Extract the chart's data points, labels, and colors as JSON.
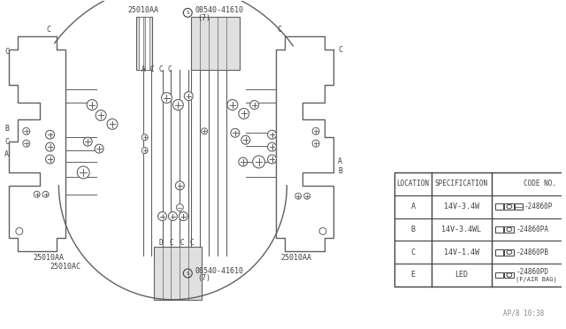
{
  "bg_color": "#ffffff",
  "table": {
    "headers": [
      "LOCATION",
      "SPECIFICATION",
      "CODE NO."
    ],
    "rows": [
      [
        "A",
        "14V-3.4W",
        "24860P"
      ],
      [
        "B",
        "14V-3.4WL",
        "24860PA"
      ],
      [
        "C",
        "14V-1.4W",
        "24860PB"
      ],
      [
        "E",
        "LED",
        "24860PD\n(F/AIR BAG)"
      ]
    ]
  },
  "top_label": "25010AA",
  "top_s_label": "08540-41610",
  "top_s_sub": "(7)",
  "bot_s_label": "08540-41610",
  "bot_s_sub": "(7)",
  "bot_left_label1": "25010AA",
  "bot_left_label2": "25010AC",
  "bot_right_label": "25010AA",
  "top_pin_labels": [
    "A",
    "C",
    "C",
    "C"
  ],
  "bot_pin_labels": [
    "D",
    "C",
    "C",
    "C"
  ],
  "left_labels": [
    [
      "C",
      60
    ],
    [
      "B",
      148
    ],
    [
      "C",
      163
    ],
    [
      "A",
      177
    ]
  ],
  "right_labels": [
    [
      "C",
      58
    ],
    [
      "A",
      185
    ],
    [
      "B",
      196
    ]
  ],
  "timestamp": "AP/8 10:38",
  "lc": "#606060",
  "tc": "#404040"
}
